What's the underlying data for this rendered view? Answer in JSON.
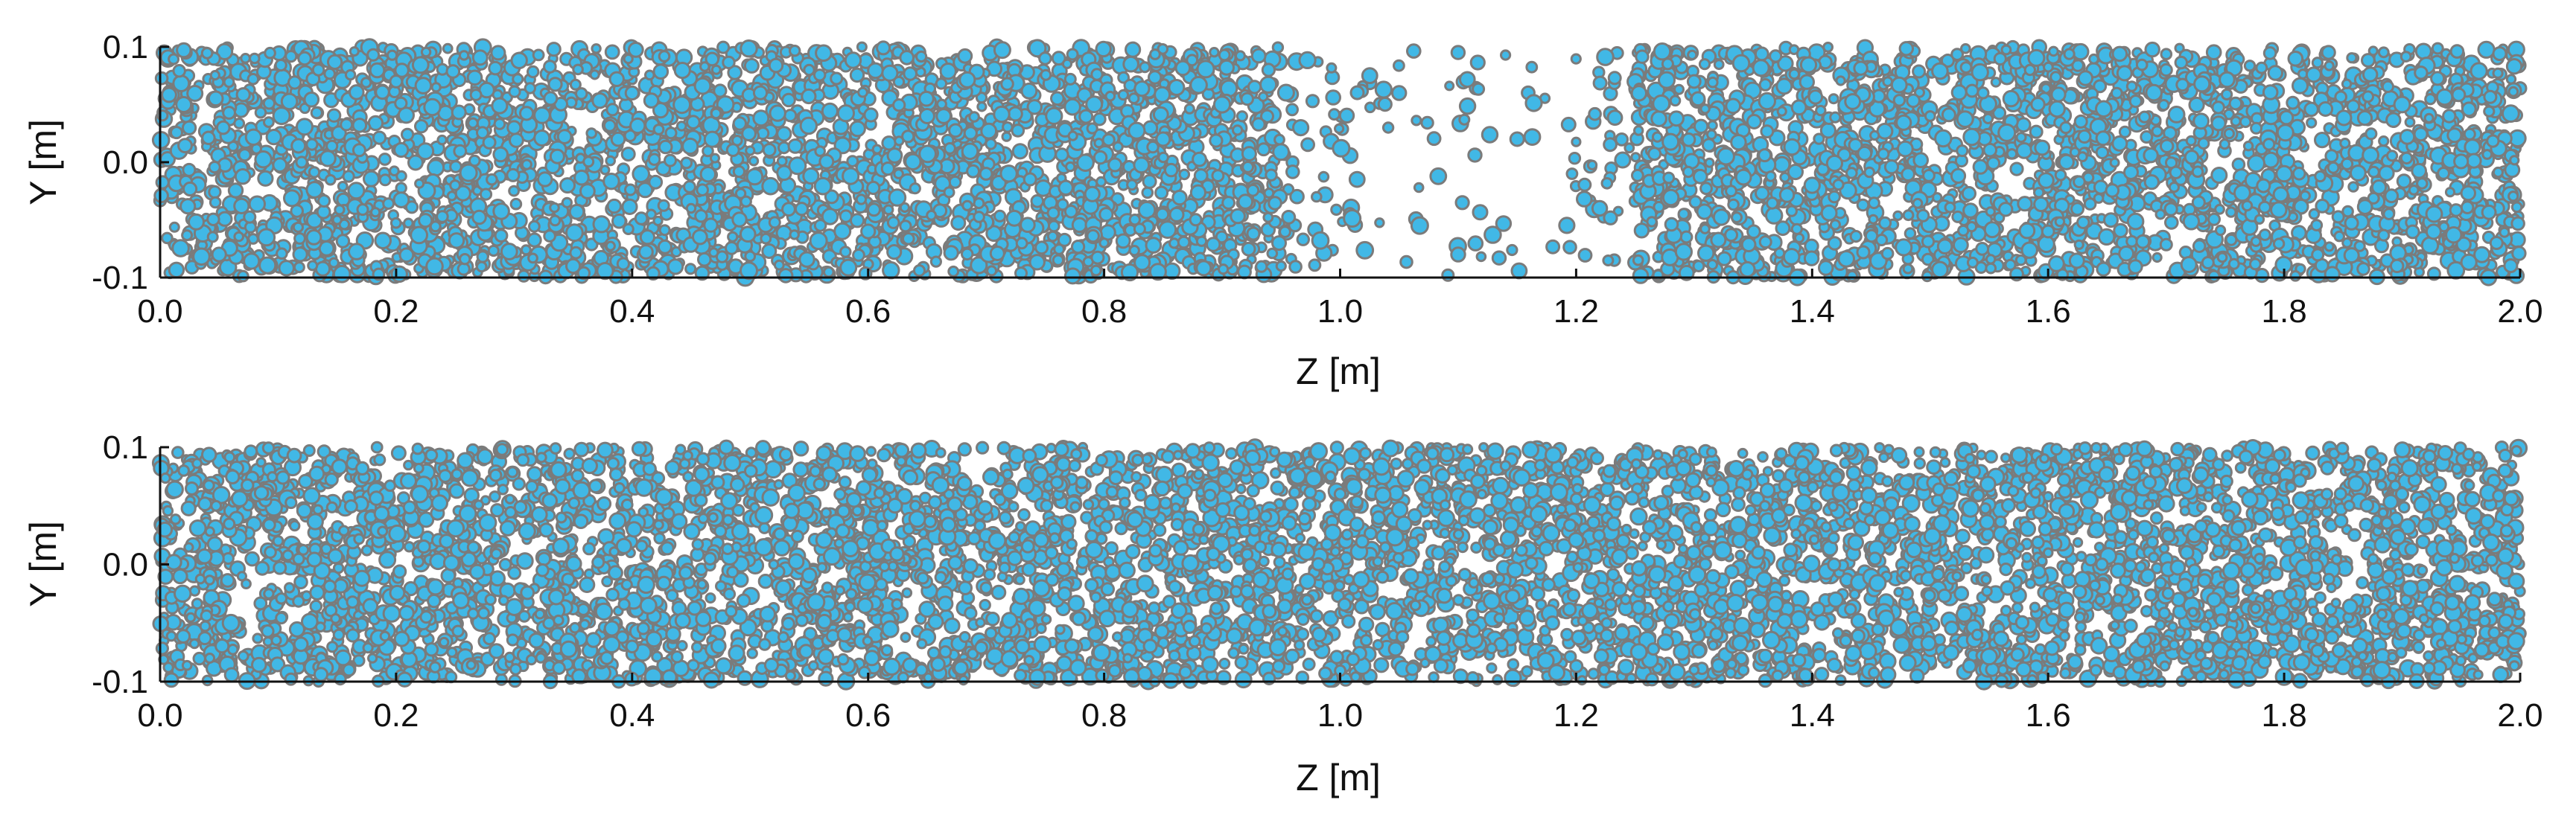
{
  "colors": {
    "background": "#ffffff",
    "axis": "#111111",
    "particle_fill": "#41b8e6",
    "particle_edge": "#7b7b7b"
  },
  "chart_data": [
    {
      "type": "scatter",
      "title": "",
      "xlabel": "Z [m]",
      "ylabel": "Y [m]",
      "xlim": [
        0.0,
        2.0
      ],
      "ylim": [
        -0.1,
        0.1
      ],
      "xticks": [
        "0.0",
        "0.2",
        "0.4",
        "0.6",
        "0.8",
        "1.0",
        "1.2",
        "1.4",
        "1.6",
        "1.8",
        "2.0"
      ],
      "yticks": [
        "-0.1",
        "0.0",
        "0.1"
      ],
      "grid": false,
      "legend": "none",
      "marker": "filled circle, cyan fill with grey edge",
      "density_profile": [
        {
          "z": [
            0.0,
            0.95
          ],
          "density": "high"
        },
        {
          "z": [
            0.95,
            1.25
          ],
          "density": "low (sparse gap)"
        },
        {
          "z": [
            1.25,
            2.0
          ],
          "density": "high"
        }
      ],
      "series": [
        {
          "points_sample": [
            [
              0.02,
              0.05
            ],
            [
              0.05,
              -0.08
            ],
            [
              0.08,
              0.09
            ],
            [
              0.12,
              0.0
            ],
            [
              0.15,
              -0.05
            ],
            [
              0.2,
              0.07
            ],
            [
              0.25,
              -0.02
            ],
            [
              0.3,
              0.03
            ],
            [
              0.35,
              -0.09
            ],
            [
              0.4,
              0.06
            ],
            [
              0.45,
              -0.04
            ],
            [
              0.5,
              0.01
            ],
            [
              0.55,
              0.08
            ],
            [
              0.6,
              -0.06
            ],
            [
              0.65,
              0.04
            ],
            [
              0.7,
              -0.01
            ],
            [
              0.75,
              0.09
            ],
            [
              0.8,
              -0.07
            ],
            [
              0.85,
              0.02
            ],
            [
              0.9,
              0.05
            ],
            [
              0.98,
              -0.03
            ],
            [
              1.05,
              0.06
            ],
            [
              1.1,
              -0.08
            ],
            [
              1.15,
              0.02
            ],
            [
              1.22,
              -0.04
            ],
            [
              1.3,
              0.07
            ],
            [
              1.4,
              -0.02
            ],
            [
              1.5,
              0.04
            ],
            [
              1.6,
              -0.06
            ],
            [
              1.7,
              0.08
            ],
            [
              1.8,
              -0.01
            ],
            [
              1.9,
              0.05
            ],
            [
              1.98,
              -0.07
            ]
          ]
        }
      ]
    },
    {
      "type": "scatter",
      "title": "",
      "xlabel": "Z [m]",
      "ylabel": "Y [m]",
      "xlim": [
        0.0,
        2.0
      ],
      "ylim": [
        -0.1,
        0.1
      ],
      "xticks": [
        "0.0",
        "0.2",
        "0.4",
        "0.6",
        "0.8",
        "1.0",
        "1.2",
        "1.4",
        "1.6",
        "1.8",
        "2.0"
      ],
      "yticks": [
        "-0.1",
        "0.0",
        "0.1"
      ],
      "grid": false,
      "legend": "none",
      "marker": "filled circle, cyan fill with grey edge",
      "density_profile": [
        {
          "z": [
            0.0,
            2.0
          ],
          "density": "uniform, moderate-high"
        }
      ],
      "series": [
        {
          "points_sample": [
            [
              0.02,
              0.08
            ],
            [
              0.06,
              -0.05
            ],
            [
              0.1,
              0.02
            ],
            [
              0.16,
              -0.09
            ],
            [
              0.22,
              0.06
            ],
            [
              0.28,
              -0.03
            ],
            [
              0.34,
              0.04
            ],
            [
              0.4,
              -0.07
            ],
            [
              0.46,
              0.09
            ],
            [
              0.52,
              0.0
            ],
            [
              0.58,
              -0.06
            ],
            [
              0.64,
              0.05
            ],
            [
              0.7,
              -0.02
            ],
            [
              0.76,
              0.07
            ],
            [
              0.82,
              -0.08
            ],
            [
              0.88,
              0.03
            ],
            [
              0.94,
              -0.04
            ],
            [
              1.0,
              0.06
            ],
            [
              1.06,
              -0.01
            ],
            [
              1.12,
              0.08
            ],
            [
              1.18,
              -0.05
            ],
            [
              1.24,
              0.02
            ],
            [
              1.3,
              -0.09
            ],
            [
              1.36,
              0.05
            ],
            [
              1.42,
              -0.03
            ],
            [
              1.48,
              0.07
            ],
            [
              1.54,
              -0.06
            ],
            [
              1.6,
              0.01
            ],
            [
              1.66,
              0.09
            ],
            [
              1.72,
              -0.07
            ],
            [
              1.78,
              0.04
            ],
            [
              1.84,
              -0.02
            ],
            [
              1.9,
              0.06
            ],
            [
              1.96,
              -0.08
            ]
          ]
        }
      ]
    }
  ]
}
